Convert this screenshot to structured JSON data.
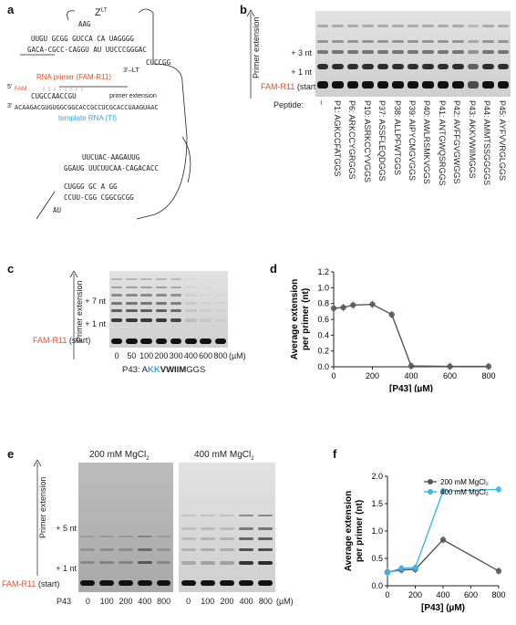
{
  "panel_a": {
    "letter": "a",
    "ribozyme_label": "Z",
    "ribozyme_sup": "LT",
    "end3": "3'–LT",
    "primer_label": "RNA primer (FAM-R11)",
    "primer_seq": "CUGCCAACCGU",
    "template_label": "template RNA (TI)",
    "template_seq": "ACAAGACGUGUGGCGGCACCGCCUCGCACCUAAGUAAC",
    "primer_ext": "primer extension",
    "fam": "FAM",
    "five": "5'",
    "three": "3'",
    "seq_lines": [
      "AAG",
      "UUGU GCGG  GUCCA  CA  UAGGGG",
      "GACA-CGCC-CAGGU  AU   UUCCCGGGAC",
      "CUCCGG",
      "UUCUAC-AAGAUUG",
      "GGAUG  UUCUUCAA-CAGACACC",
      "CCUU-CGG CGGCGCGG",
      "CUGGG GC  A   GG",
      "AU"
    ]
  },
  "panel_b": {
    "letter": "b",
    "axis_label": "Primer extension",
    "markers": [
      "+ 3 nt",
      "+ 1 nt"
    ],
    "start_name": "FAM-R11",
    "start_suffix": "(start)",
    "peptide_label": "Peptide:",
    "lanes": [
      "–",
      "P1: AGKCCFATGGS",
      "P6: ARKCCYGRGGS",
      "P10: ASRKCCYVGGS",
      "P37: ASSFLEQDGGS",
      "P38: ALLPFWTGGS",
      "P39: AIPYCMGVGGS",
      "P40: AWLRSMKVGGS",
      "P41: ANTGWQSRGGS",
      "P42: AVFFGVGWGGS",
      "P43: AKKVWIIMGGS",
      "P44: AMMTSSGGGGS",
      "P45: AYFVVRGLGGS"
    ]
  },
  "panel_c": {
    "letter": "c",
    "axis_label": "Primer extension",
    "markers": [
      "+ 7 nt",
      "+ 1 nt"
    ],
    "start_name": "FAM-R11",
    "start_suffix": "(start)",
    "concs": [
      "0",
      "50",
      "100",
      "200",
      "300",
      "400",
      "600",
      "800"
    ],
    "unit": "(µM)",
    "peptide_prefix": "P43: A",
    "peptide_hl": "KK",
    "peptide_bold": "VWIIM",
    "peptide_suffix": "GGS"
  },
  "panel_d": {
    "letter": "d",
    "chart_data": {
      "type": "line",
      "x": [
        0,
        50,
        100,
        200,
        300,
        400,
        600,
        800
      ],
      "values": [
        0.74,
        0.75,
        0.78,
        0.79,
        0.66,
        0.01,
        0.005,
        0.005
      ],
      "ylabel_line1": "Average extension",
      "ylabel_line2": "per primer (nt)",
      "xlabel": "[P43] (µM)",
      "xticks": [
        0,
        200,
        400,
        600,
        800
      ],
      "yticks": [
        0.0,
        0.2,
        0.4,
        0.6,
        0.8,
        1.0,
        1.2
      ],
      "xlim": [
        0,
        800
      ],
      "ylim": [
        0,
        1.2
      ],
      "color": "#555555"
    }
  },
  "panel_e": {
    "letter": "e",
    "axis_label": "Primer extension",
    "cond1": "200 mM MgCl",
    "cond2": "400 mM MgCl",
    "sub2": "2",
    "markers": [
      "+ 5 nt",
      "+ 1 nt"
    ],
    "start_name": "FAM-R11",
    "start_suffix": "(start)",
    "row_label": "P43",
    "concs": [
      "0",
      "100",
      "200",
      "400",
      "800"
    ],
    "unit": "(µM)"
  },
  "panel_f": {
    "letter": "f",
    "chart_data": {
      "type": "line",
      "x": [
        0,
        100,
        200,
        400,
        800
      ],
      "series": [
        {
          "name": "200 mM MgCl₂",
          "values": [
            0.25,
            0.29,
            0.3,
            0.84,
            0.27
          ],
          "color": "#555555"
        },
        {
          "name": "400 mM MgCl₂",
          "values": [
            0.24,
            0.32,
            0.33,
            1.73,
            1.76
          ],
          "color": "#3fb4ee"
        }
      ],
      "ylabel_line1": "Average extension",
      "ylabel_line2": "per primer (nt)",
      "xlabel": "[P43] (µM)",
      "xticks": [
        0,
        200,
        400,
        600,
        800
      ],
      "yticks": [
        0.0,
        0.5,
        1.0,
        1.5,
        2.0
      ],
      "xlim": [
        0,
        800
      ],
      "ylim": [
        0,
        2.0
      ],
      "legend": "top-right"
    }
  }
}
